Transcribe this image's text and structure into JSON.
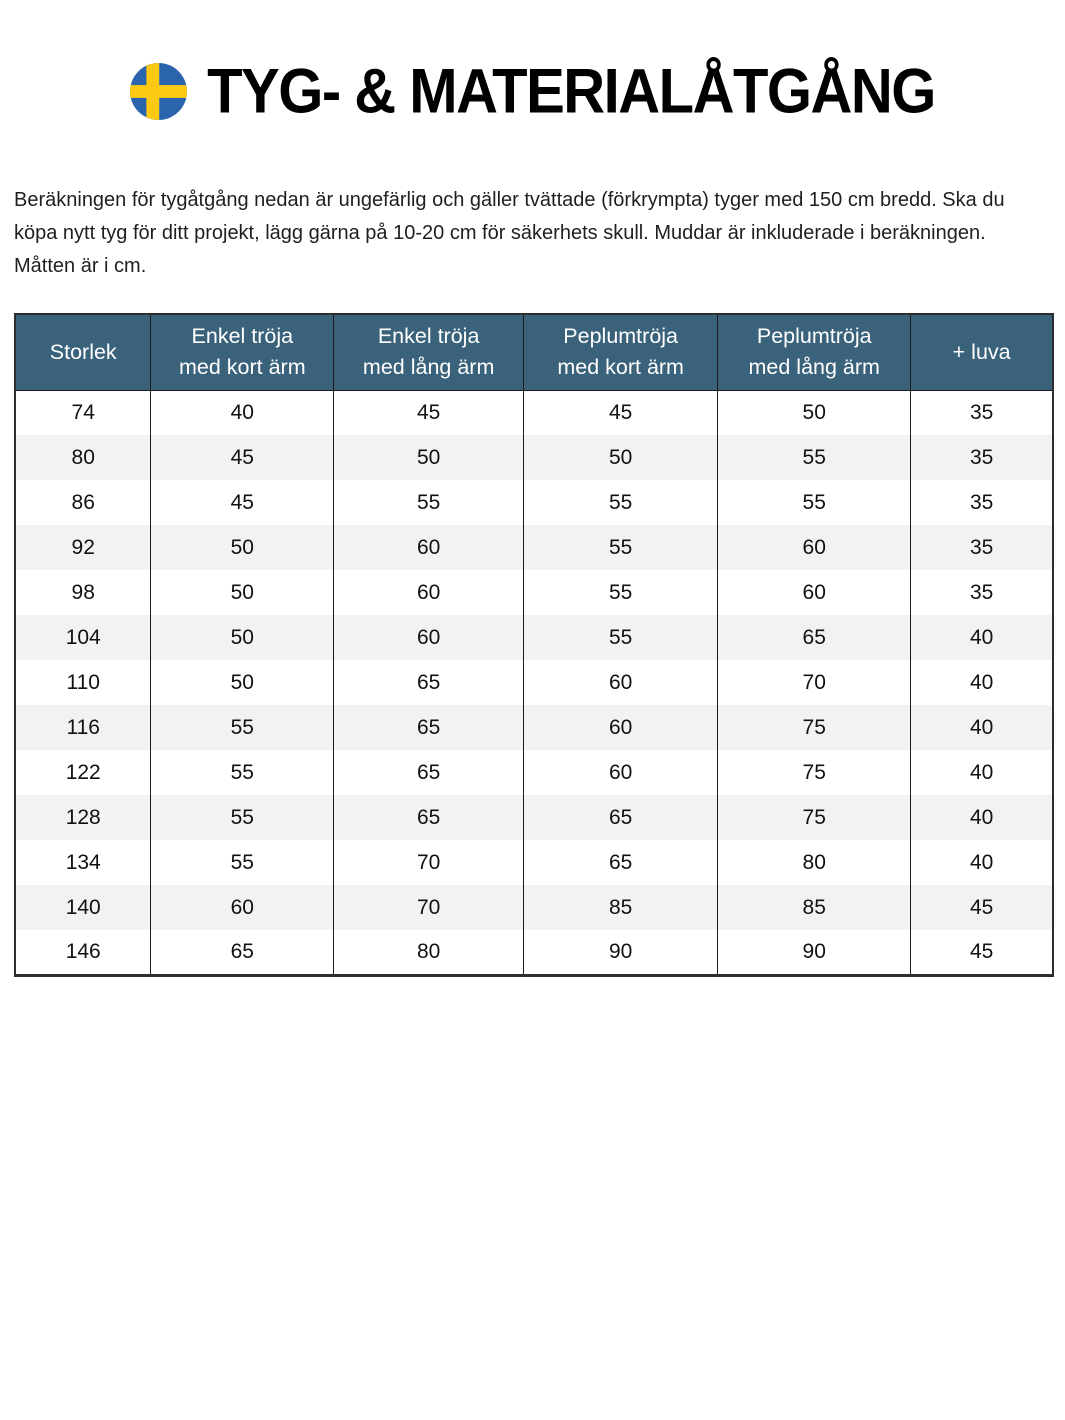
{
  "page": {
    "title": "TYG- & MATERIALÅTGÅNG",
    "flag_icon": "swedish-flag-icon"
  },
  "intro": {
    "text": "Beräkningen för tygåtgång nedan är ungefärlig och gäller tvättade (förkrympta) tyger med 150 cm bredd. Ska du köpa nytt tyg för ditt projekt, lägg gärna på 10-20 cm för säkerhets skull. Muddar är inkluderade i beräkningen. Måtten är i cm."
  },
  "table": {
    "headers": [
      "Storlek",
      "Enkel tröja\nmed kort ärm",
      "Enkel tröja\nmed lång ärm",
      "Peplumtröja\nmed kort ärm",
      "Peplumtröja\nmed lång ärm",
      "+ luva"
    ],
    "rows": [
      [
        "74",
        "40",
        "45",
        "45",
        "50",
        "35"
      ],
      [
        "80",
        "45",
        "50",
        "50",
        "55",
        "35"
      ],
      [
        "86",
        "45",
        "55",
        "55",
        "55",
        "35"
      ],
      [
        "92",
        "50",
        "60",
        "55",
        "60",
        "35"
      ],
      [
        "98",
        "50",
        "60",
        "55",
        "60",
        "35"
      ],
      [
        "104",
        "50",
        "60",
        "55",
        "65",
        "40"
      ],
      [
        "110",
        "50",
        "65",
        "60",
        "70",
        "40"
      ],
      [
        "116",
        "55",
        "65",
        "60",
        "75",
        "40"
      ],
      [
        "122",
        "55",
        "65",
        "60",
        "75",
        "40"
      ],
      [
        "128",
        "55",
        "65",
        "65",
        "75",
        "40"
      ],
      [
        "134",
        "55",
        "70",
        "65",
        "80",
        "40"
      ],
      [
        "140",
        "60",
        "70",
        "85",
        "85",
        "45"
      ],
      [
        "146",
        "65",
        "80",
        "90",
        "90",
        "45"
      ]
    ],
    "unit": "cm"
  },
  "colors": {
    "header_bg": "#3b627b",
    "zebra_stripe": "#f2f2f2",
    "flag_blue": "#2a64ad",
    "flag_yellow": "#fdc913",
    "text": "#1c1c1c"
  }
}
